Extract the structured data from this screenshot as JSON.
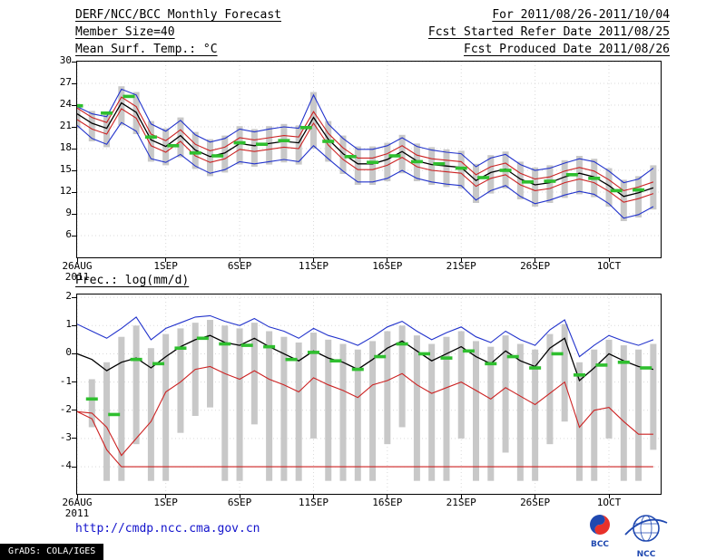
{
  "header": {
    "title": "DERF/NCC/BCC Monthly Forecast",
    "member_size": "Member Size=40",
    "period": "For 2011/08/26-2011/10/04",
    "refer_date": "Fcst Started Refer Date 2011/08/25",
    "produced_date": "Fcst Produced Date 2011/08/26"
  },
  "footer": {
    "url": "http://cmdp.ncc.cma.gov.cn",
    "grads_credit": "GrADS: COLA/IGES",
    "bcc_label": "BCC",
    "ncc_label": "NCC"
  },
  "colors": {
    "blue": "#2233cc",
    "red": "#cc2222",
    "black": "#000000",
    "green": "#2fbf2f",
    "bar": "#c8c8c8",
    "grid": "#d9d9d9"
  },
  "chart_data": [
    {
      "type": "line",
      "title": "Mean Surf. Temp.: °C",
      "x_year_label": "2011",
      "x_max": 39.5,
      "ylim": [
        3,
        30
      ],
      "yticks": [
        30,
        27,
        24,
        21,
        18,
        15,
        12,
        9,
        6
      ],
      "x_ticks": {
        "days": [
          0,
          6,
          11,
          16,
          21,
          26,
          31,
          36
        ],
        "labels": [
          "26AUG",
          "1SEP",
          "6SEP",
          "11SEP",
          "16SEP",
          "21SEP",
          "26SEP",
          "1OCT"
        ]
      },
      "series": [
        {
          "name": "ensemble-max",
          "color": "blue",
          "values": [
            23.8,
            22.8,
            22.4,
            26.2,
            25.4,
            21.4,
            20.4,
            21.9,
            19.9,
            18.9,
            19.4,
            20.7,
            20.3,
            20.7,
            21.0,
            20.8,
            25.4,
            21.4,
            19.4,
            17.9,
            17.9,
            18.4,
            19.5,
            18.3,
            17.8,
            17.5,
            17.3,
            15.5,
            16.7,
            17.2,
            15.8,
            15.0,
            15.3,
            16.0,
            16.6,
            16.2,
            14.9,
            13.3,
            13.8,
            15.3
          ]
        },
        {
          "name": "mean-plus-sd",
          "color": "red",
          "values": [
            23.6,
            22.3,
            21.6,
            25.1,
            23.8,
            20.0,
            19.1,
            20.6,
            18.6,
            17.7,
            18.2,
            19.5,
            19.2,
            19.5,
            19.8,
            19.6,
            23.1,
            20.1,
            18.1,
            16.7,
            16.7,
            17.3,
            18.4,
            17.1,
            16.6,
            16.4,
            16.2,
            14.4,
            15.5,
            16.0,
            14.6,
            13.8,
            14.1,
            14.9,
            15.4,
            14.9,
            13.7,
            12.2,
            12.7,
            13.4
          ]
        },
        {
          "name": "ensemble-mean",
          "color": "black",
          "values": [
            22.8,
            21.5,
            20.8,
            24.3,
            23.0,
            19.2,
            18.3,
            19.8,
            17.8,
            16.9,
            17.4,
            18.7,
            18.4,
            18.7,
            19.0,
            18.8,
            22.3,
            19.3,
            17.3,
            15.9,
            15.9,
            16.5,
            17.6,
            16.3,
            15.8,
            15.6,
            15.4,
            13.6,
            14.7,
            15.2,
            13.8,
            13.0,
            13.3,
            14.1,
            14.6,
            14.1,
            12.9,
            11.4,
            11.9,
            12.6
          ]
        },
        {
          "name": "mean-minus-sd",
          "color": "red",
          "values": [
            22.0,
            20.7,
            20.0,
            23.5,
            22.2,
            18.4,
            17.5,
            19.0,
            17.0,
            16.1,
            16.6,
            17.9,
            17.6,
            17.9,
            18.2,
            18.0,
            21.5,
            18.5,
            16.5,
            15.1,
            15.1,
            15.7,
            16.8,
            15.5,
            15.0,
            14.8,
            14.6,
            12.8,
            13.9,
            14.4,
            13.0,
            12.2,
            12.5,
            13.3,
            13.8,
            13.3,
            12.1,
            10.6,
            11.1,
            11.8
          ]
        },
        {
          "name": "ensemble-min",
          "color": "blue",
          "values": [
            21.2,
            19.4,
            18.6,
            21.6,
            20.4,
            16.6,
            16.1,
            17.2,
            15.6,
            14.6,
            15.1,
            16.2,
            15.9,
            16.2,
            16.5,
            16.2,
            18.4,
            16.6,
            14.9,
            13.4,
            13.4,
            13.9,
            15.0,
            13.9,
            13.4,
            13.1,
            12.9,
            10.9,
            12.2,
            12.9,
            11.4,
            10.4,
            10.9,
            11.6,
            12.1,
            11.7,
            10.4,
            8.4,
            8.9,
            10.0
          ]
        }
      ],
      "bars": {
        "hi": [
          24.2,
          23.2,
          22.8,
          26.6,
          25.8,
          21.8,
          20.8,
          22.3,
          20.3,
          19.3,
          19.8,
          21.1,
          20.7,
          21.1,
          21.4,
          21.2,
          25.8,
          21.8,
          19.8,
          18.3,
          18.3,
          18.8,
          19.9,
          18.7,
          18.2,
          17.9,
          17.7,
          15.9,
          17.1,
          17.6,
          16.2,
          15.4,
          15.7,
          16.4,
          17.0,
          16.6,
          15.3,
          13.7,
          14.2,
          15.7
        ],
        "lo": [
          20.8,
          19.0,
          18.2,
          21.2,
          20.0,
          16.2,
          15.7,
          16.8,
          15.2,
          14.2,
          14.7,
          15.8,
          15.5,
          15.8,
          16.1,
          15.8,
          18.0,
          16.2,
          14.5,
          13.0,
          13.0,
          13.5,
          14.6,
          13.5,
          13.0,
          12.7,
          12.5,
          10.5,
          11.8,
          12.5,
          11.0,
          10.0,
          10.5,
          11.2,
          11.7,
          11.3,
          10.0,
          8.0,
          8.5,
          9.6
        ]
      },
      "green_segments": [
        {
          "d": 0,
          "v": 23.9
        },
        {
          "d": 2,
          "v": 22.9
        },
        {
          "d": 3.5,
          "v": 25.2
        },
        {
          "d": 5,
          "v": 19.6
        },
        {
          "d": 6.5,
          "v": 18.4
        },
        {
          "d": 8,
          "v": 17.4
        },
        {
          "d": 9.5,
          "v": 17.0
        },
        {
          "d": 11,
          "v": 18.8
        },
        {
          "d": 12.5,
          "v": 18.6
        },
        {
          "d": 14,
          "v": 19.1
        },
        {
          "d": 15.5,
          "v": 20.9
        },
        {
          "d": 17,
          "v": 19.0
        },
        {
          "d": 18.5,
          "v": 16.9
        },
        {
          "d": 20,
          "v": 16.1
        },
        {
          "d": 21.5,
          "v": 17.0
        },
        {
          "d": 23,
          "v": 16.2
        },
        {
          "d": 24.5,
          "v": 15.9
        },
        {
          "d": 26,
          "v": 15.3
        },
        {
          "d": 27.5,
          "v": 14.0
        },
        {
          "d": 29,
          "v": 15.0
        },
        {
          "d": 30.5,
          "v": 13.4
        },
        {
          "d": 32,
          "v": 13.5
        },
        {
          "d": 33.5,
          "v": 14.4
        },
        {
          "d": 35,
          "v": 13.9
        },
        {
          "d": 36.5,
          "v": 12.2
        },
        {
          "d": 38,
          "v": 12.3
        }
      ]
    },
    {
      "type": "line",
      "title": "Prec.: log(mm/d)",
      "x_year_label": "2011",
      "x_max": 39.5,
      "ylim": [
        -4.96,
        2.1
      ],
      "yticks": [
        2,
        1,
        0,
        -1,
        -2,
        -3,
        -4
      ],
      "x_ticks": {
        "days": [
          0,
          6,
          11,
          16,
          21,
          26,
          31,
          36
        ],
        "labels": [
          "26AUG",
          "1SEP",
          "6SEP",
          "11SEP",
          "16SEP",
          "21SEP",
          "26SEP",
          "1OCT"
        ]
      },
      "series": [
        {
          "name": "ensemble-max",
          "color": "blue",
          "values": [
            1.05,
            0.8,
            0.55,
            0.9,
            1.3,
            0.5,
            0.9,
            1.1,
            1.3,
            1.35,
            1.15,
            1.0,
            1.25,
            0.95,
            0.8,
            0.55,
            0.9,
            0.65,
            0.5,
            0.3,
            0.6,
            0.95,
            1.15,
            0.8,
            0.5,
            0.75,
            0.95,
            0.6,
            0.4,
            0.8,
            0.5,
            0.3,
            0.85,
            1.2,
            -0.1,
            0.3,
            0.65,
            0.45,
            0.3,
            0.5
          ]
        },
        {
          "name": "ensemble-mean",
          "color": "black",
          "values": [
            0.0,
            -0.2,
            -0.6,
            -0.3,
            -0.15,
            -0.5,
            -0.1,
            0.25,
            0.5,
            0.65,
            0.4,
            0.3,
            0.55,
            0.25,
            0.0,
            -0.25,
            0.1,
            -0.15,
            -0.3,
            -0.55,
            -0.2,
            0.2,
            0.45,
            0.1,
            -0.25,
            0.0,
            0.25,
            -0.1,
            -0.35,
            0.1,
            -0.25,
            -0.45,
            0.2,
            0.55,
            -0.95,
            -0.5,
            0.0,
            -0.25,
            -0.45,
            -0.55
          ]
        },
        {
          "name": "mean-minus-sd",
          "color": "red",
          "values": [
            -2.05,
            -2.1,
            -2.6,
            -3.6,
            -3.0,
            -2.4,
            -1.35,
            -1.0,
            -0.55,
            -0.45,
            -0.7,
            -0.9,
            -0.6,
            -0.9,
            -1.1,
            -1.35,
            -0.85,
            -1.1,
            -1.3,
            -1.55,
            -1.1,
            -0.95,
            -0.7,
            -1.1,
            -1.4,
            -1.2,
            -1.0,
            -1.3,
            -1.6,
            -1.2,
            -1.5,
            -1.8,
            -1.4,
            -1.0,
            -2.6,
            -2.0,
            -1.9,
            -2.4,
            -2.85,
            -2.85
          ]
        },
        {
          "name": "ensemble-min",
          "color": "red",
          "values": [
            -2.05,
            -2.3,
            -3.4,
            -4,
            -4,
            -4,
            -4,
            -4,
            -4,
            -4,
            -4,
            -4,
            -4,
            -4,
            -4,
            -4,
            -4,
            -4,
            -4,
            -4,
            -4,
            -4,
            -4,
            -4,
            -4,
            -4,
            -4,
            -4,
            -4,
            -4,
            -4,
            -4,
            -4,
            -4,
            -4,
            -4,
            -4,
            -4,
            -4,
            -4
          ]
        }
      ],
      "bars": {
        "hi": [
          null,
          -0.9,
          -0.3,
          0.6,
          1.0,
          0.2,
          0.7,
          0.9,
          1.1,
          1.2,
          1.0,
          0.9,
          1.1,
          0.8,
          0.6,
          0.4,
          0.75,
          0.5,
          0.35,
          0.15,
          0.45,
          0.8,
          1.0,
          0.65,
          0.35,
          0.6,
          0.8,
          0.45,
          0.25,
          0.65,
          0.35,
          0.15,
          0.7,
          1.05,
          -0.3,
          0.15,
          0.5,
          0.3,
          0.15,
          0.35
        ],
        "lo": [
          null,
          -2.6,
          -4.5,
          -4.5,
          -3.2,
          -4.5,
          -4.5,
          -2.8,
          -2.2,
          -1.9,
          -4.5,
          -4.5,
          -2.5,
          -4.5,
          -4.5,
          -4.5,
          -3.0,
          -4.5,
          -4.5,
          -4.5,
          -4.5,
          -3.2,
          -2.6,
          -4.5,
          -4.5,
          -4.5,
          -3.0,
          -4.5,
          -4.5,
          -3.5,
          -4.5,
          -4.5,
          -3.2,
          -2.4,
          -4.5,
          -4.5,
          -3.0,
          -4.5,
          -4.5,
          -3.4
        ]
      },
      "green_segments": [
        {
          "d": 1,
          "v": -1.6
        },
        {
          "d": 2.5,
          "v": -2.15
        },
        {
          "d": 4,
          "v": -0.2
        },
        {
          "d": 5.5,
          "v": -0.35
        },
        {
          "d": 7,
          "v": 0.2
        },
        {
          "d": 8.5,
          "v": 0.55
        },
        {
          "d": 10,
          "v": 0.35
        },
        {
          "d": 11.5,
          "v": 0.3
        },
        {
          "d": 13,
          "v": 0.25
        },
        {
          "d": 14.5,
          "v": -0.2
        },
        {
          "d": 16,
          "v": 0.05
        },
        {
          "d": 17.5,
          "v": -0.25
        },
        {
          "d": 19,
          "v": -0.55
        },
        {
          "d": 20.5,
          "v": -0.1
        },
        {
          "d": 22,
          "v": 0.35
        },
        {
          "d": 23.5,
          "v": 0.0
        },
        {
          "d": 25,
          "v": -0.15
        },
        {
          "d": 26.5,
          "v": 0.1
        },
        {
          "d": 28,
          "v": -0.35
        },
        {
          "d": 29.5,
          "v": -0.1
        },
        {
          "d": 31,
          "v": -0.5
        },
        {
          "d": 32.5,
          "v": 0.0
        },
        {
          "d": 34,
          "v": -0.75
        },
        {
          "d": 35.5,
          "v": -0.4
        },
        {
          "d": 37,
          "v": -0.3
        },
        {
          "d": 38.5,
          "v": -0.5
        }
      ]
    }
  ]
}
